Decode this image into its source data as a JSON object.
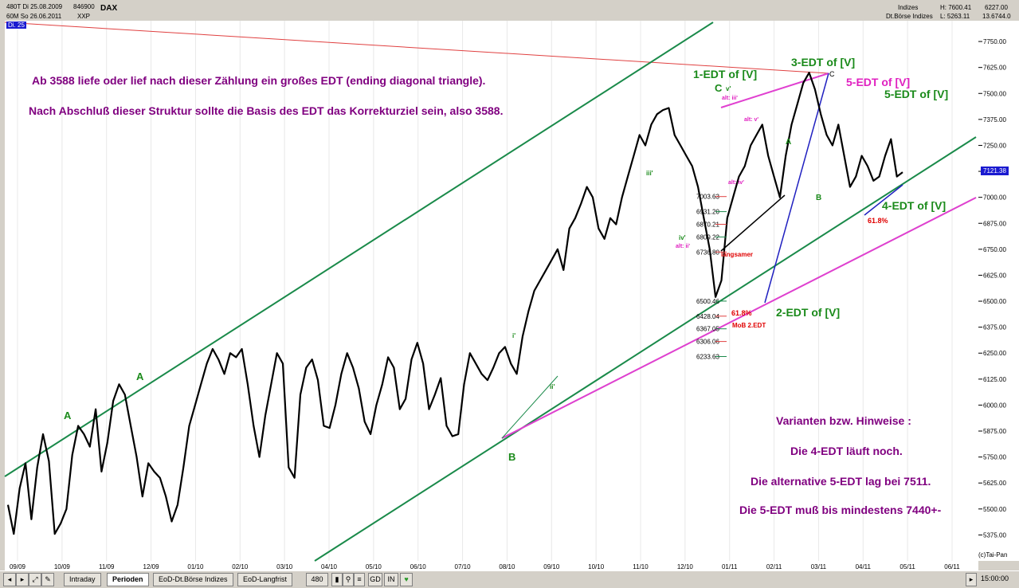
{
  "header": {
    "line1": "480T Di 25.08.2009",
    "line1b": "846900",
    "symbol": "DAX",
    "line2": "60M So 26.06.2011",
    "line2b": "XXP",
    "badge": "Di. 25",
    "right_top": "Indizes",
    "right_sub": "Dt.Börse Indizes",
    "high": "H: 7600.41",
    "low": "L: 5263.11",
    "right_val1": "6227.00",
    "right_val2": "13.6744.0"
  },
  "tabs": [
    {
      "label": "Intraday",
      "active": false
    },
    {
      "label": "Perioden",
      "active": true
    },
    {
      "label": "EoD-Dt.Börse Indizes",
      "active": false
    },
    {
      "label": "EoD-Langfrist",
      "active": false
    }
  ],
  "toolbar": {
    "period": "480",
    "gd": "GD",
    "in": "IN",
    "time": "15:00:00",
    "nav_icon": "chart-nav-icon"
  },
  "copyright": "(c)Tai-Pan",
  "current_price": "7121.38",
  "colors": {
    "plot_bg": "#ffffff",
    "price": "#000000",
    "channel": "#1a8a4a",
    "magenta": "#e040d0",
    "blue": "#2020c0",
    "red_line": "#e04040",
    "text_purple": "#800080",
    "label_green": "#1a8a1a",
    "label_magenta": "#e020c0",
    "price_label_bg": "#1a1ad0"
  },
  "chart_data": {
    "type": "line",
    "title": "DAX",
    "ylim": [
      5250,
      7850
    ],
    "y_ticks": [
      5375,
      5500,
      5625,
      5750,
      5875,
      6000,
      6125,
      6250,
      6375,
      6500,
      6625,
      6750,
      6875,
      7000,
      7125,
      7250,
      7375,
      7500,
      7625,
      7750
    ],
    "y_tick_labels": [
      "5375.00",
      "5500.00",
      "5625.00",
      "5750.00",
      "5875.00",
      "6000.00",
      "6125.00",
      "6250.00",
      "6375.00",
      "6500.00",
      "6625.00",
      "6750.00",
      "6875.00",
      "7000.00",
      "7125.00",
      "7250.00",
      "7375.00",
      "7500.00",
      "7625.00",
      "7750.00"
    ],
    "x_ticks": [
      "09/09",
      "10/09",
      "11/09",
      "12/09",
      "01/10",
      "02/10",
      "03/10",
      "04/10",
      "05/10",
      "06/10",
      "07/10",
      "08/10",
      "09/10",
      "10/10",
      "11/10",
      "12/10",
      "01/11",
      "02/11",
      "03/11",
      "04/11",
      "05/11",
      "06/11"
    ],
    "series": [
      {
        "values": [
          5520,
          5380,
          5600,
          5720,
          5450,
          5700,
          5860,
          5730,
          5380,
          5430,
          5500,
          5760,
          5900,
          5860,
          5800,
          5980,
          5680,
          5820,
          6020,
          6100,
          6050,
          5900,
          5750,
          5560,
          5720,
          5680,
          5650,
          5560,
          5440,
          5520,
          5700,
          5900,
          6000,
          6100,
          6200,
          6270,
          6220,
          6150,
          6250,
          6230,
          6270,
          6100,
          5900,
          5750,
          5950,
          6100,
          6250,
          6200,
          5700,
          5650,
          6050,
          6180,
          6220,
          6120,
          5900,
          5890,
          6000,
          6150,
          6250,
          6180,
          6080,
          5920,
          5860,
          6000,
          6100,
          6230,
          6180,
          5980,
          6030,
          6220,
          6300,
          6200,
          5980,
          6050,
          6130,
          5900,
          5850,
          5860,
          6100,
          6250,
          6200,
          6150,
          6120,
          6180,
          6250,
          6280,
          6200,
          6150,
          6330,
          6450,
          6550,
          6600,
          6650,
          6700,
          6750,
          6650,
          6850,
          6900,
          6970,
          7050,
          7000,
          6850,
          6800,
          6900,
          6870,
          7000,
          7100,
          7200,
          7300,
          7250,
          7350,
          7400,
          7420,
          7430,
          7300,
          7250,
          7200,
          7150,
          7050,
          6900,
          6750,
          6520,
          6600,
          6900,
          7000,
          7100,
          7150,
          7250,
          7300,
          7350,
          7200,
          7100,
          7000,
          7200,
          7350,
          7450,
          7550,
          7600,
          7520,
          7400,
          7300,
          7250,
          7350,
          7200,
          7050,
          7100,
          7200,
          7150,
          7080,
          7100,
          7200,
          7280,
          7100,
          7121
        ]
      }
    ],
    "annotations": {
      "text_block_1": "Ab 3588 liefe oder lief nach dieser Zählung ein großes EDT (ending diagonal triangle).",
      "text_block_2": "Nach Abschluß dieser Struktur sollte die Basis des EDT das Korrekturziel sein, also 3588.",
      "hint_title": "Varianten bzw. Hinweise :",
      "hint_1": "Die 4-EDT läuft noch.",
      "hint_2": "Die alternative 5-EDT lag bei 7511.",
      "hint_3": "Die 5-EDT muß bis mindestens 7440+-",
      "edt1": "1-EDT of [V]",
      "edt2": "2-EDT of [V]",
      "edt3": "3-EDT of [V]",
      "edt4": "4-EDT of [V]",
      "edt5": "5-EDT of [V]",
      "edt5b": "5-EDT of [V]",
      "label_A1": "A",
      "label_A2": "A",
      "label_B": "B",
      "label_C": "C",
      "label_v": "v'",
      "label_alt_iii": "alt: iii'",
      "label_alt_v": "alt: v'",
      "label_alt_iv": "alt: iv'",
      "label_iii": "iii'",
      "label_iv": "iv'",
      "label_alt_ii": "alt: ii'",
      "label_i": "i'",
      "label_ii": "ii'",
      "label_A_small": "A",
      "label_B_small": "B",
      "label_C_small": "C",
      "langsamer": "langsamer",
      "fib_618_1": "61.8%",
      "fib_618_2": "61.8%",
      "mob": "MoB 2.EDT",
      "fib_levels": [
        "7003.63",
        "6931.20",
        "6870.21",
        "6809.22",
        "6736.80",
        "6500.46",
        "6428.04",
        "6367.05",
        "6306.06",
        "6233.63"
      ]
    }
  }
}
